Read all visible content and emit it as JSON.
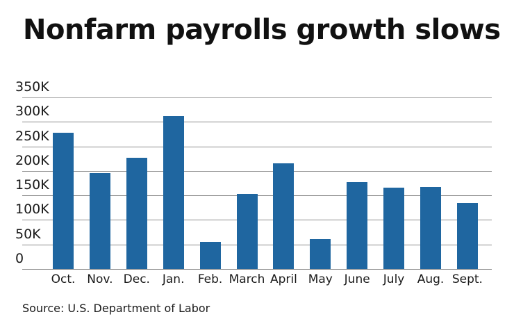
{
  "title": "Nonfarm payrolls growth slows",
  "source": "Source: U.S. Department of Labor",
  "colors": {
    "bar": "#1f66a0",
    "gridline": "#8a8a8a",
    "text": "#1a1a1a"
  },
  "yticks": [
    "350K",
    "300K",
    "250K",
    "200K",
    "150K",
    "100K",
    "50K",
    "0"
  ],
  "chart_data": {
    "type": "bar",
    "title": "Nonfarm payrolls growth slows",
    "xlabel": "",
    "ylabel": "",
    "categories": [
      "Oct.",
      "Nov.",
      "Dec.",
      "Jan.",
      "Feb.",
      "March",
      "April",
      "May",
      "June",
      "July",
      "Aug.",
      "Sept."
    ],
    "values": [
      278000,
      196000,
      227000,
      312000,
      55000,
      153000,
      215000,
      61000,
      177000,
      166000,
      167000,
      134000
    ],
    "ylim": [
      0,
      350000
    ],
    "yticks": [
      0,
      50000,
      100000,
      150000,
      200000,
      250000,
      300000,
      350000
    ],
    "ytick_labels": [
      "0",
      "50K",
      "100K",
      "150K",
      "200K",
      "250K",
      "300K",
      "350K"
    ],
    "grid": true,
    "legend": null,
    "source": "Source: U.S. Department of Labor"
  }
}
